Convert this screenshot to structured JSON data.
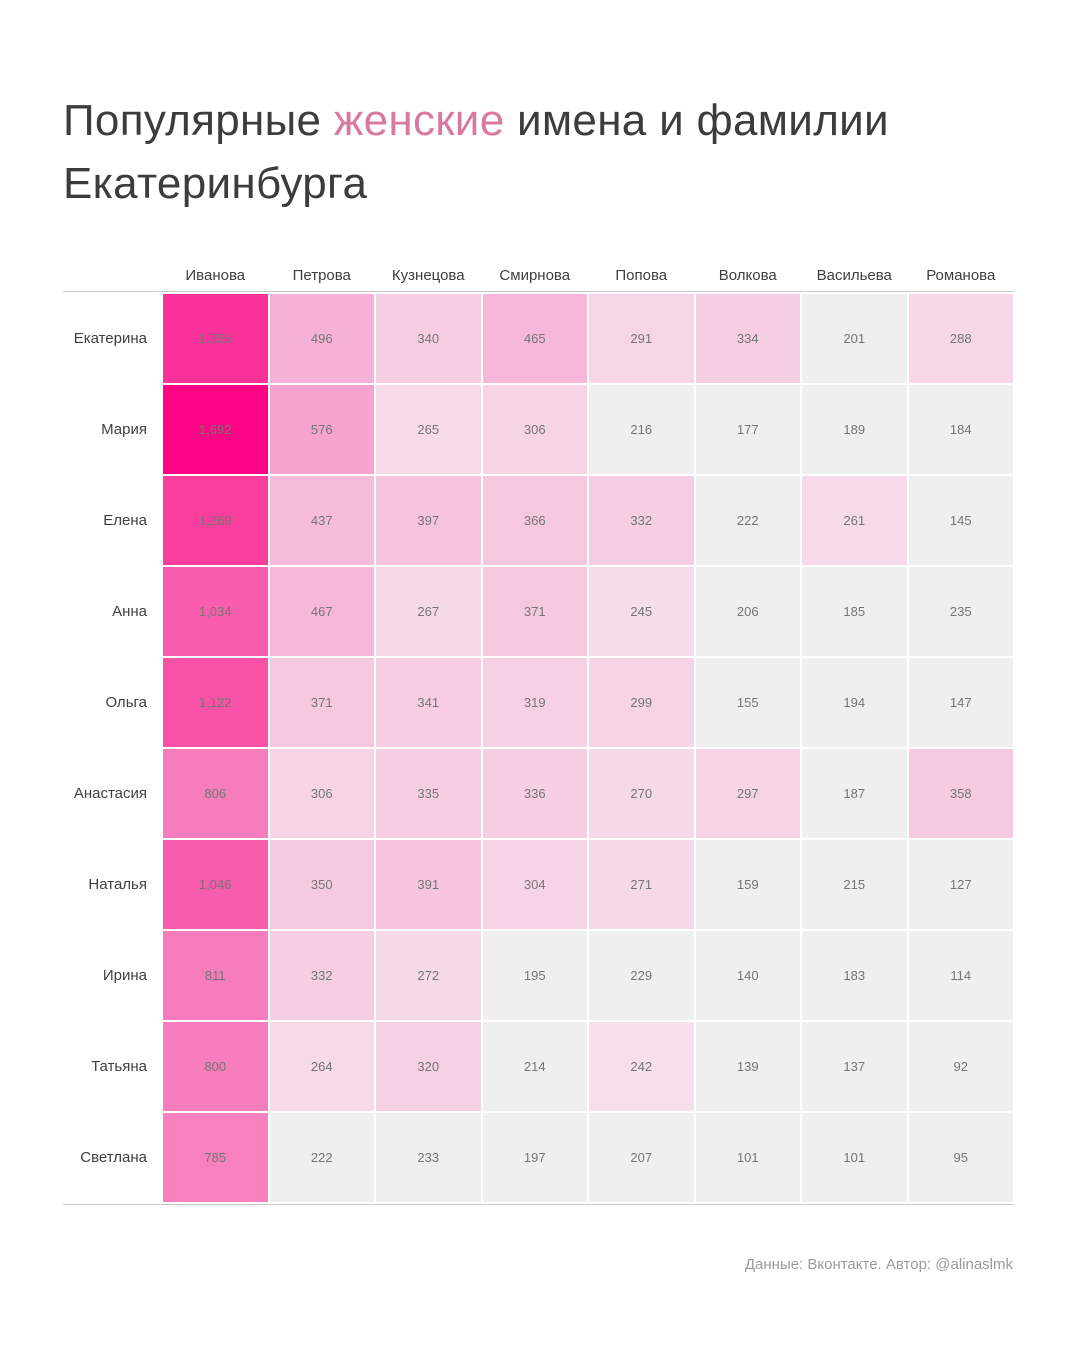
{
  "title": {
    "part1": "Популярные ",
    "highlight": "женские",
    "part2": " имена и фамилии",
    "line2": "Екатеринбурга"
  },
  "footer": {
    "credit": "Данные: Вконтакте. Автор: @alinaslmk"
  },
  "colors": {
    "title_text": "#3c3c3c",
    "title_accent": "#d87aa0",
    "grid_rule": "#c8c8c8",
    "value_text": "#757575",
    "label_text": "#3f3f3f",
    "credit_text": "#9b9b9b"
  },
  "chart_data": {
    "type": "heatmap",
    "title": "Популярные женские имена и фамилии Екатеринбурга",
    "columns": [
      "Иванова",
      "Петрова",
      "Кузнецова",
      "Смирнова",
      "Попова",
      "Волкова",
      "Васильева",
      "Романова"
    ],
    "rows": [
      "Екатерина",
      "Мария",
      "Елена",
      "Анна",
      "Ольга",
      "Анастасия",
      "Наталья",
      "Ирина",
      "Татьяна",
      "Светлана"
    ],
    "values": [
      [
        1355,
        496,
        340,
        465,
        291,
        334,
        201,
        288
      ],
      [
        1692,
        576,
        265,
        306,
        216,
        177,
        189,
        184
      ],
      [
        1269,
        437,
        397,
        366,
        332,
        222,
        261,
        145
      ],
      [
        1034,
        467,
        267,
        371,
        245,
        206,
        185,
        235
      ],
      [
        1122,
        371,
        341,
        319,
        299,
        155,
        194,
        147
      ],
      [
        806,
        306,
        335,
        336,
        270,
        297,
        187,
        358
      ],
      [
        1046,
        350,
        391,
        304,
        271,
        159,
        215,
        127
      ],
      [
        811,
        332,
        272,
        195,
        229,
        140,
        183,
        114
      ],
      [
        800,
        264,
        320,
        214,
        242,
        139,
        137,
        92
      ],
      [
        785,
        222,
        233,
        197,
        207,
        101,
        101,
        95
      ]
    ],
    "value_range": [
      92,
      1692
    ],
    "legend": "none",
    "grid": "off",
    "color_scale": {
      "gray_below": 240,
      "gray_color": "#f0eff0",
      "stops": [
        [
          240,
          "#f6deeb"
        ],
        [
          800,
          "#f67ebc"
        ],
        [
          1692,
          "#fc0483"
        ]
      ]
    }
  }
}
